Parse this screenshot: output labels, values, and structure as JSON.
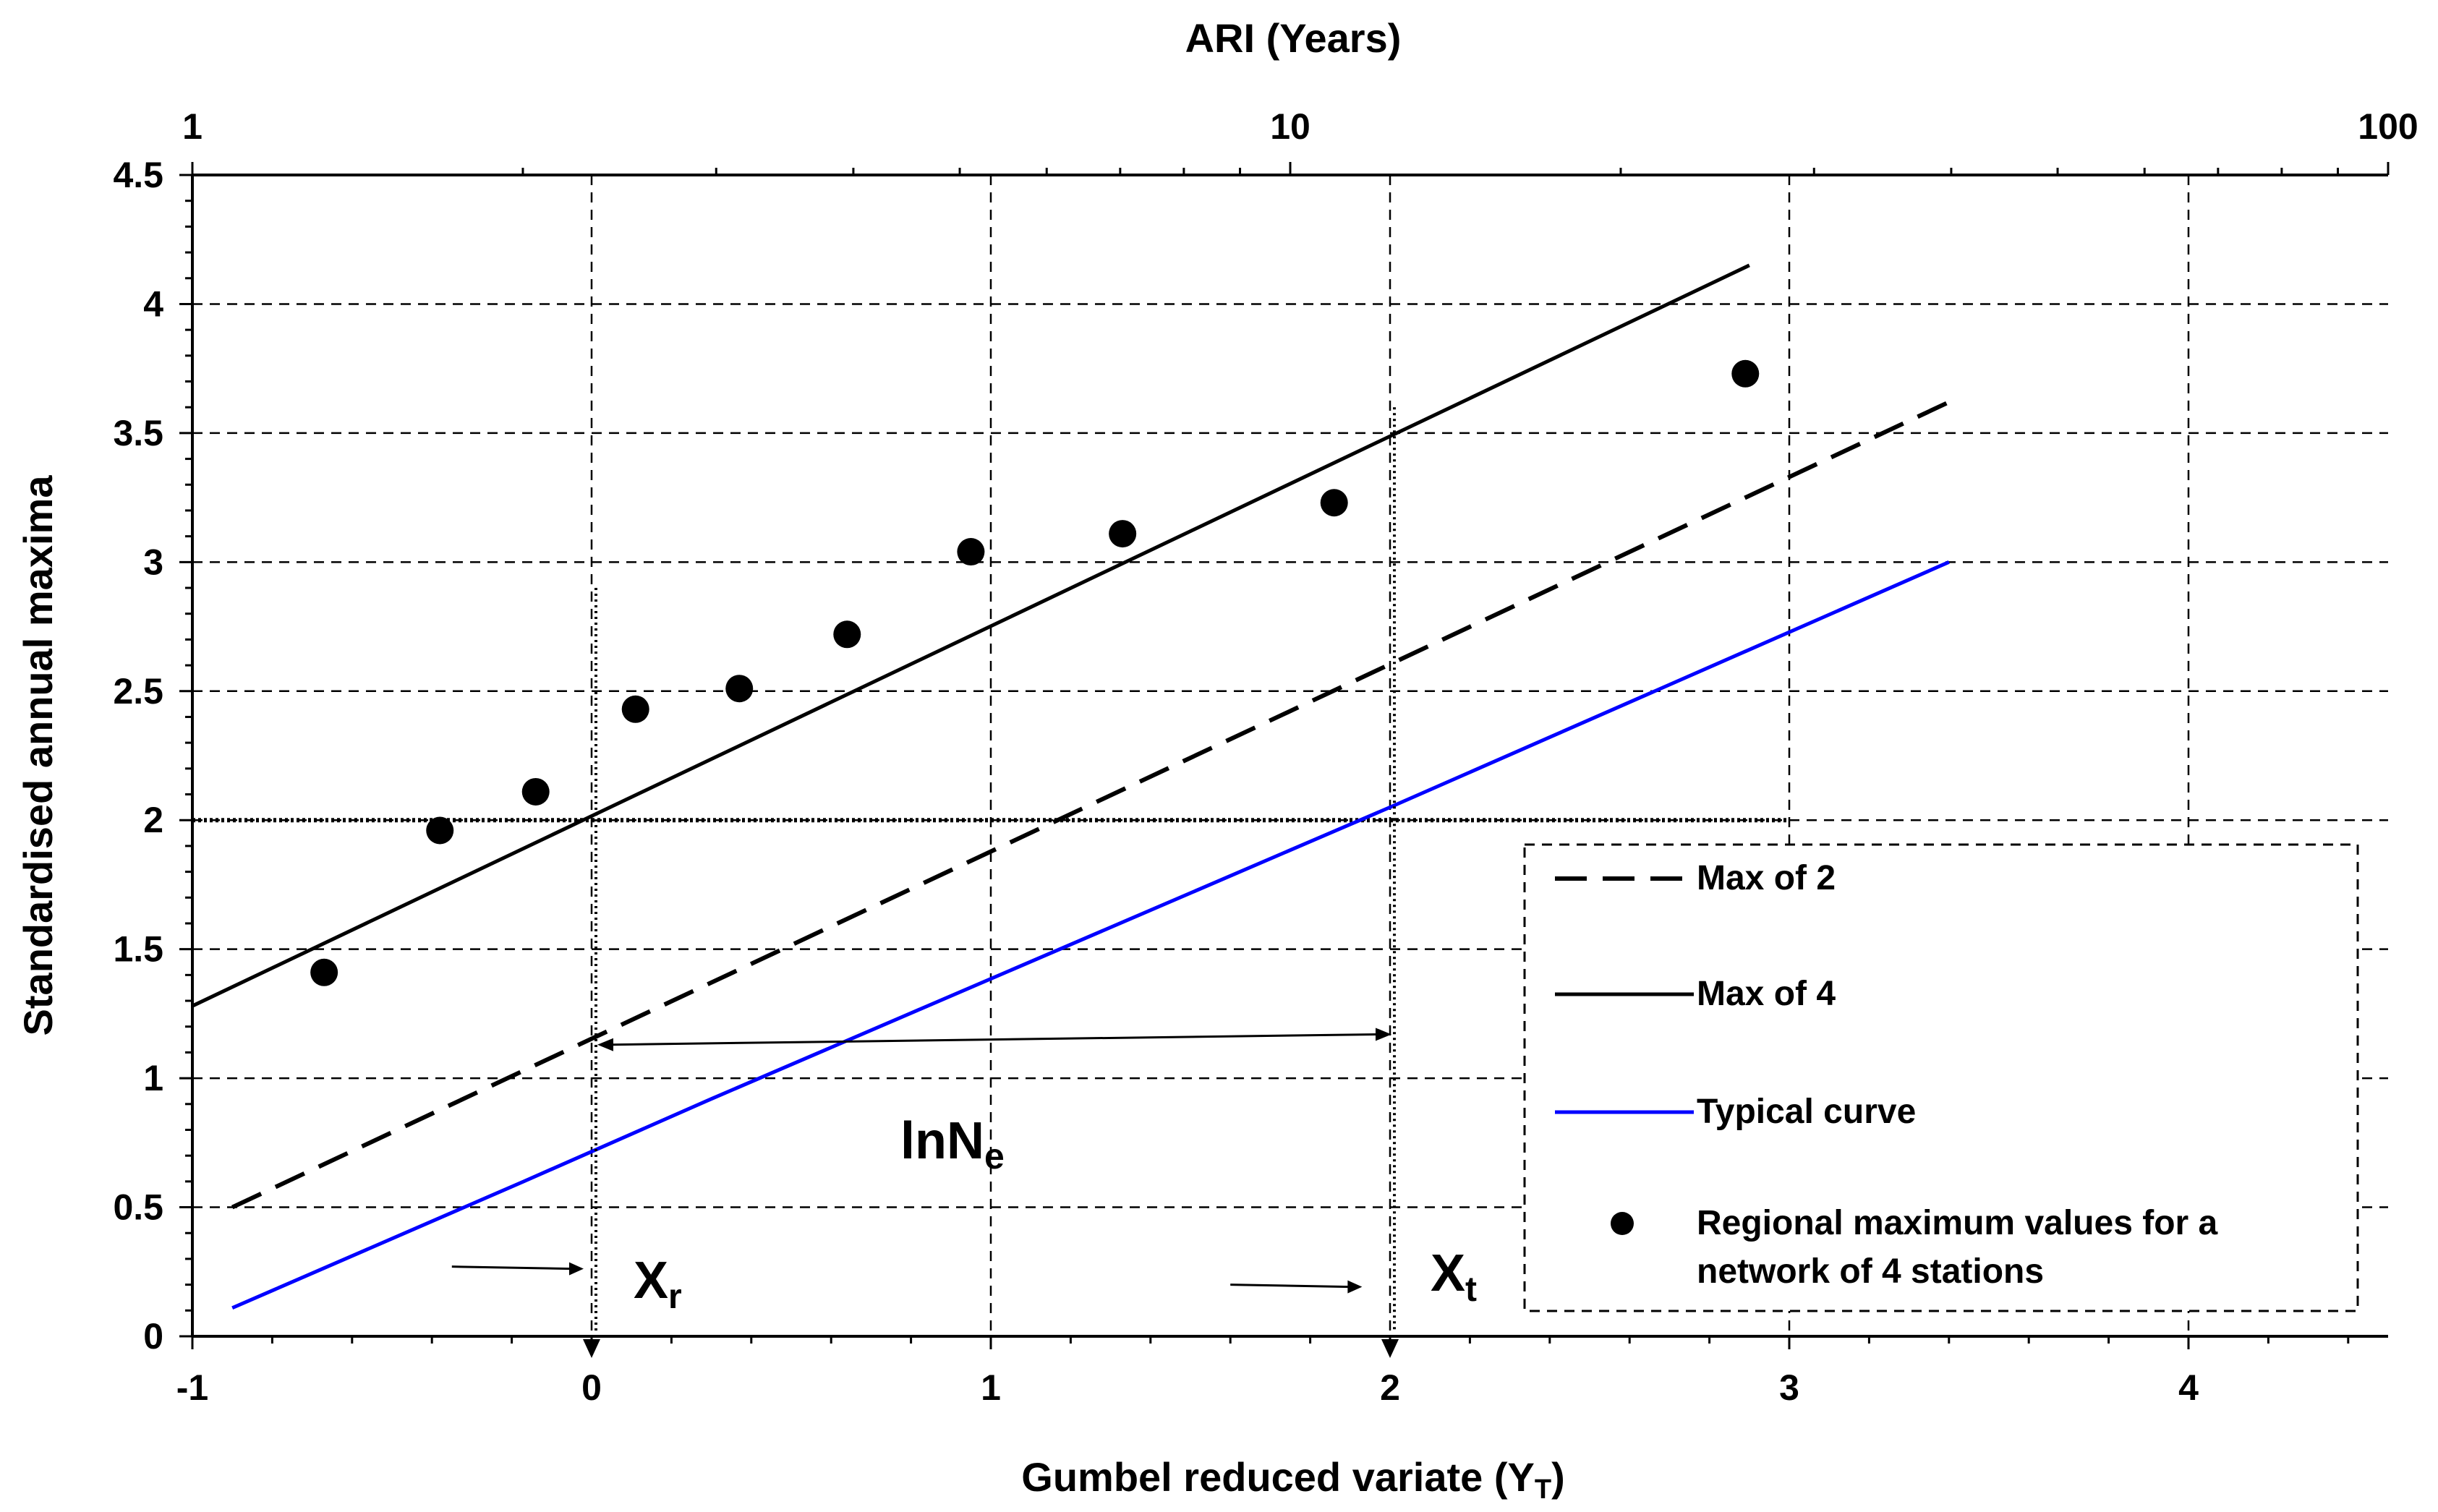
{
  "chart_data": {
    "type": "line",
    "title": "",
    "xlabel_main": "Gumbel reduced variate (Y",
    "xlabel_sub": "T",
    "xlabel_close": ")",
    "ylabel": "Standardised annual maxima",
    "top_axis_title": "ARI (Years)",
    "xlim": [
      -1,
      4.5
    ],
    "ylim": [
      0,
      4.5
    ],
    "x_ticks": [
      -1,
      0,
      1,
      2,
      3,
      4
    ],
    "x_tick_labels": [
      "-1",
      "0",
      "1",
      "2",
      "3",
      "4"
    ],
    "y_ticks": [
      0,
      0.5,
      1,
      1.5,
      2,
      2.5,
      3,
      3.5,
      4,
      4.5
    ],
    "y_tick_labels": [
      "0",
      "0.5",
      "1",
      "1.5",
      "2",
      "2.5",
      "3",
      "3.5",
      "4",
      "4.5"
    ],
    "top_ticks": [
      1,
      10,
      100
    ],
    "top_tick_labels": [
      "1",
      "10",
      "100"
    ],
    "grid": true,
    "series": [
      {
        "name": "Max of 2",
        "style": "dashed",
        "color": "#000000",
        "x": [
          -0.9,
          3.4
        ],
        "y": [
          0.5,
          3.62
        ]
      },
      {
        "name": "Max of 4",
        "style": "solid",
        "color": "#000000",
        "x": [
          -1.0,
          2.9
        ],
        "y": [
          1.28,
          4.15
        ]
      },
      {
        "name": "Typical curve",
        "style": "solid",
        "color": "#0000ff",
        "x": [
          -0.9,
          -0.17,
          0.3,
          2.0,
          3.4
        ],
        "y": [
          0.11,
          0.6,
          0.92,
          2.05,
          3.0
        ]
      },
      {
        "name": "Regional maximum values for a network of 4 stations",
        "style": "marker",
        "color": "#000000",
        "x": [
          -0.67,
          -0.38,
          -0.14,
          0.11,
          0.37,
          0.64,
          0.95,
          1.33,
          1.86,
          2.89
        ],
        "y": [
          1.41,
          1.96,
          2.11,
          2.43,
          2.51,
          2.72,
          3.04,
          3.11,
          3.23,
          3.73
        ]
      }
    ],
    "reference_line": {
      "y": 2.0,
      "x_from": -1.0,
      "x_to": 3.0
    },
    "annotations": {
      "xr_main": "X",
      "xr_sub": "r",
      "xr_x": 0,
      "xr_top_y": 2.9,
      "xt_main": "X",
      "xt_sub": "t",
      "xt_x": 2,
      "xt_top_y": 3.6,
      "lnne_main": "lnN",
      "lnne_sub": "e",
      "arrow_y_start": 1.13,
      "arrow_y_end": 1.17
    },
    "legend": {
      "position": "lower-right",
      "entries": [
        {
          "label": "Max of 2",
          "style": "dashed",
          "color": "#000000"
        },
        {
          "label": "Max of 4",
          "style": "solid",
          "color": "#000000"
        },
        {
          "label": "Typical curve",
          "style": "solid",
          "color": "#0000ff"
        },
        {
          "label_line1": "Regional maximum values for a",
          "label_line2": "network of 4 stations",
          "style": "marker",
          "color": "#000000"
        }
      ]
    }
  }
}
